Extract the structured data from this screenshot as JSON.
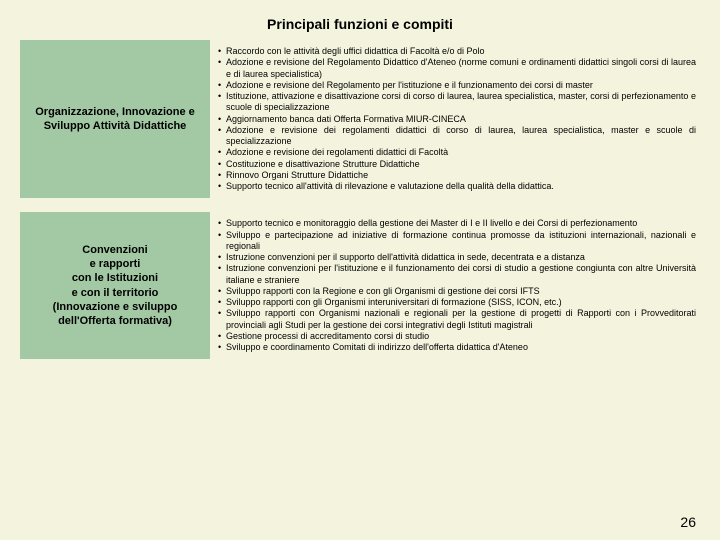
{
  "title": "Principali funzioni e compiti",
  "colors": {
    "page_bg": "#f4f4de",
    "cell_bg": "#a2c8a4",
    "text": "#000000"
  },
  "rows": [
    {
      "heading": "Organizzazione, Innovazione e Sviluppo Attività Didattiche",
      "items": [
        "Raccordo con le attività degli uffici didattica di Facoltà e/o di Polo",
        "Adozione e revisione del Regolamento Didattico d'Ateneo (norme comuni e ordinamenti didattici singoli corsi di laurea e di laurea specialistica)",
        "Adozione e revisione del Regolamento per l'istituzione e il funzionamento dei corsi di master",
        "Istituzione, attivazione e disattivazione corsi di corso di laurea, laurea specialistica, master, corsi di perfezionamento e scuole di specializzazione",
        "Aggiornamento banca dati Offerta Formativa MIUR-CINECA",
        "Adozione e revisione dei regolamenti didattici di corso di laurea, laurea specialistica, master e scuole di specializzazione",
        "Adozione e revisione dei regolamenti didattici di Facoltà",
        "Costituzione e disattivazione Strutture Didattiche",
        "Rinnovo Organi Strutture Didattiche",
        "Supporto tecnico all'attività di rilevazione e valutazione della qualità della didattica."
      ]
    },
    {
      "heading": "Convenzioni\ne rapporti\ncon le Istituzioni\ne con il territorio\n(Innovazione e sviluppo\ndell'Offerta formativa)",
      "items": [
        "Supporto tecnico e monitoraggio della gestione dei Master di I e II livello e dei Corsi di perfezionamento",
        "Sviluppo e partecipazione ad iniziative di formazione continua promosse da istituzioni internazionali, nazionali e regionali",
        "Istruzione convenzioni per il supporto dell'attività didattica in sede, decentrata e a distanza",
        "Istruzione convenzioni per l'istituzione e il funzionamento dei corsi di studio a gestione congiunta con altre Università italiane e straniere",
        "Sviluppo rapporti con la Regione e con gli Organismi di gestione dei corsi IFTS",
        "Sviluppo rapporti con gli Organismi interuniversitari di formazione (SISS, ICON, etc.)",
        "Sviluppo rapporti con Organismi nazionali e regionali per la gestione di progetti di Rapporti con i Provveditorati provinciali agli Studi per la gestione dei corsi integrativi degli Istituti magistrali",
        "Gestione processi di accreditamento corsi di studio",
        "Sviluppo e coordinamento Comitati di indirizzo dell'offerta didattica d'Ateneo"
      ]
    }
  ],
  "page_number": "26"
}
